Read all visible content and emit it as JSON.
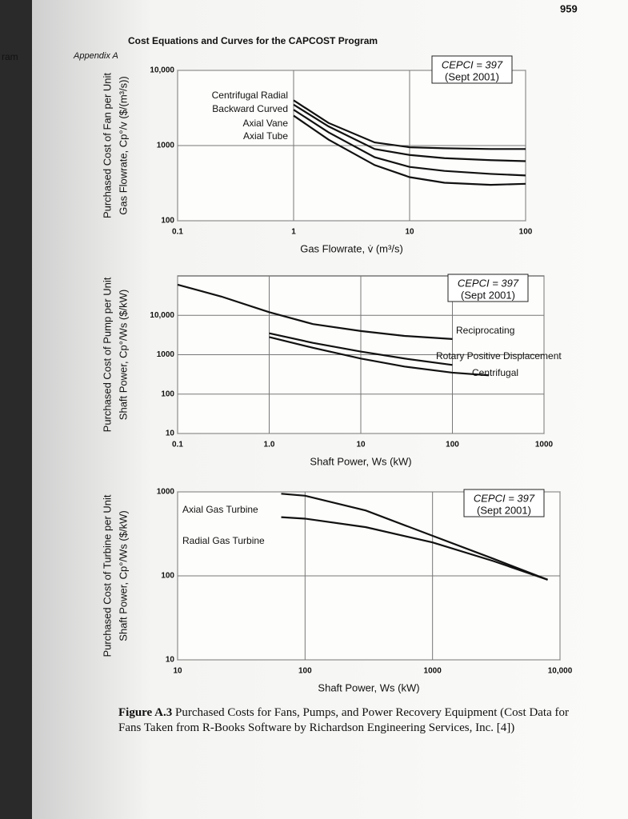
{
  "side_text": "ram",
  "page_number": "959",
  "header": "Appendix A",
  "header_title": "Cost Equations and Curves for the CAPCOST Program",
  "caption_label": "Figure A.3",
  "caption": "Purchased Costs for Fans, Pumps, and Power Recovery Equipment (Cost Data for Fans Taken from R-Books Software by Richardson Engineering Services, Inc. [4])",
  "chart_data": [
    {
      "type": "line",
      "log_x": true,
      "log_y": true,
      "grid": true,
      "xlabel": "Gas Flowrate, v̇ (m³/s)",
      "ylabel": [
        "Purchased Cost of Fan per Unit",
        "Gas Flowrate, Cp°/v ($/(m³/s))"
      ],
      "annotations": [
        "CEPCI = 397",
        "(Sept 2001)"
      ],
      "xlim": [
        0.1,
        100
      ],
      "xticks": [
        0.1,
        1,
        10,
        100
      ],
      "ylim": [
        100,
        10000
      ],
      "yticks": [
        100,
        1000,
        {
          "value": 10000,
          "label": "10,000"
        }
      ],
      "x": [
        1,
        2,
        5,
        10,
        20,
        50,
        100
      ],
      "series": [
        {
          "name": "Centrifugal Radial",
          "color": "#111111",
          "values": [
            4000,
            2000,
            1100,
            950,
            920,
            900,
            900
          ]
        },
        {
          "name": "Backward Curved",
          "color": "#111111",
          "values": [
            3500,
            1800,
            900,
            750,
            680,
            640,
            620
          ]
        },
        {
          "name": "Axial Vane",
          "color": "#111111",
          "values": [
            3000,
            1500,
            700,
            520,
            460,
            420,
            400
          ]
        },
        {
          "name": "Axial Tube",
          "color": "#111111",
          "values": [
            2500,
            1200,
            550,
            380,
            320,
            300,
            310
          ]
        }
      ]
    },
    {
      "type": "line",
      "log_x": true,
      "log_y": true,
      "grid": true,
      "xlabel": "Shaft Power, Ws (kW)",
      "ylabel": [
        "Purchased Cost of Pump per Unit",
        "Shaft Power, Cp°/Ws ($/kW)"
      ],
      "annotations": [
        "CEPCI = 397",
        "(Sept 2001)"
      ],
      "xlim": [
        0.1,
        1000
      ],
      "xticks": [
        0.1,
        {
          "value": 1,
          "label": "1.0"
        },
        10,
        100,
        1000
      ],
      "ylim": [
        10,
        100000
      ],
      "yticks": [
        10,
        100,
        1000,
        {
          "value": 10000,
          "label": "10,000"
        }
      ],
      "x": [
        0.1,
        0.3,
        1,
        3,
        10,
        30,
        100,
        250
      ],
      "series": [
        {
          "name": "Reciprocating",
          "color": "#111111",
          "values": [
            60000,
            30000,
            12000,
            6000,
            4000,
            3000,
            2500,
            null
          ]
        },
        {
          "name": "Rotary Positive Displacement",
          "color": "#111111",
          "values": [
            null,
            null,
            3500,
            2000,
            1200,
            800,
            550,
            null
          ]
        },
        {
          "name": "Centrifugal",
          "color": "#111111",
          "values": [
            null,
            null,
            2800,
            1500,
            800,
            500,
            350,
            300
          ]
        }
      ]
    },
    {
      "type": "line",
      "log_x": true,
      "log_y": true,
      "grid": true,
      "xlabel": "Shaft Power, Ws (kW)",
      "ylabel": [
        "Purchased Cost of Turbine per Unit",
        "Shaft Power, Cp°/Ws ($/kW)"
      ],
      "annotations": [
        "CEPCI = 397",
        "(Sept 2001)"
      ],
      "xlim": [
        10,
        10000
      ],
      "xticks": [
        10,
        100,
        1000,
        {
          "value": 10000,
          "label": "10,000"
        }
      ],
      "ylim": [
        10,
        1000
      ],
      "yticks": [
        10,
        100,
        1000
      ],
      "x": [
        65,
        100,
        300,
        1000,
        3000,
        8000
      ],
      "series": [
        {
          "name": "Axial Gas Turbine",
          "color": "#111111",
          "values": [
            950,
            900,
            600,
            300,
            160,
            90
          ]
        },
        {
          "name": "Radial Gas Turbine",
          "color": "#111111",
          "values": [
            500,
            480,
            380,
            250,
            150,
            90
          ]
        }
      ]
    }
  ]
}
